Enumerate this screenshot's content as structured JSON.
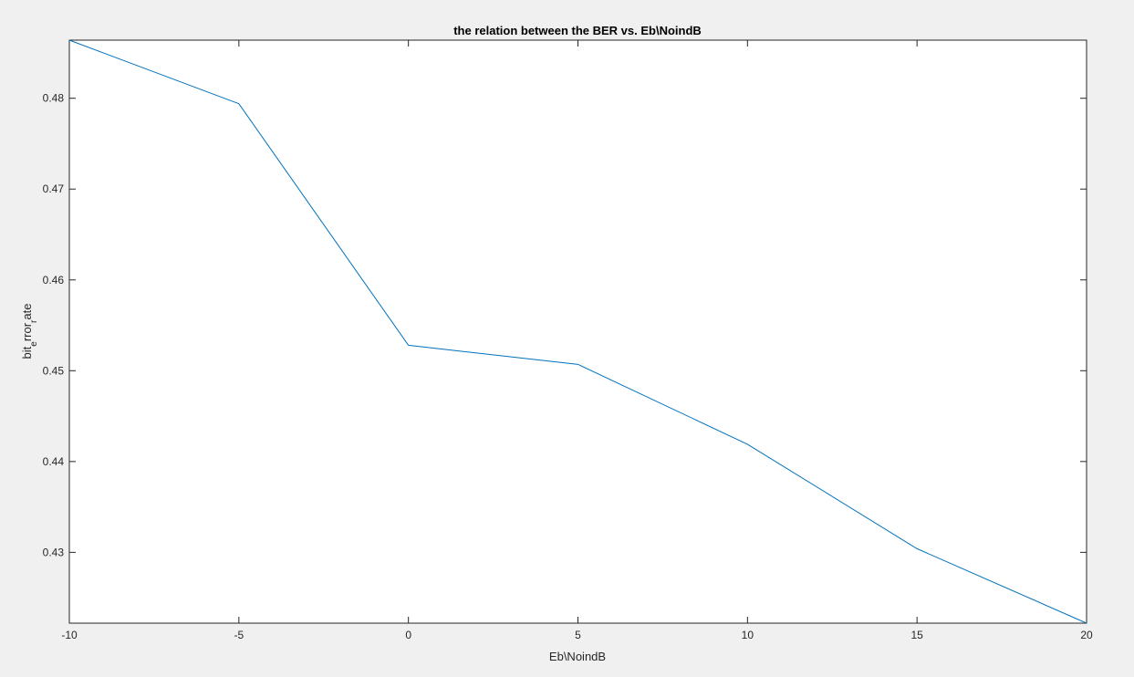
{
  "chart_data": {
    "type": "line",
    "title": "the relation between the BER vs. Eb\\NoindB",
    "xlabel": "Eb\\NoindB",
    "ylabel": {
      "parts": [
        {
          "text": "bit",
          "sub": false
        },
        {
          "text": "e",
          "sub": true
        },
        {
          "text": "rror",
          "sub": false
        },
        {
          "text": "r",
          "sub": true
        },
        {
          "text": "ate",
          "sub": false
        }
      ]
    },
    "xlim": [
      -10,
      20
    ],
    "ylim": [
      0.4222,
      0.4864
    ],
    "xticks": [
      -10,
      -5,
      0,
      5,
      10,
      15,
      20
    ],
    "xtick_labels": [
      "-10",
      "-5",
      "0",
      "5",
      "10",
      "15",
      "20"
    ],
    "yticks": [
      0.43,
      0.44,
      0.45,
      0.46,
      0.47,
      0.48
    ],
    "ytick_labels": [
      "0.43",
      "0.44",
      "0.45",
      "0.46",
      "0.47",
      "0.48"
    ],
    "grid": false,
    "line_color": "#0072bd",
    "series": [
      {
        "x": [
          -10,
          -5,
          0,
          5,
          10,
          15,
          20
        ],
        "values": [
          0.4864,
          0.4794,
          0.4528,
          0.4507,
          0.4419,
          0.4304,
          0.4222
        ]
      }
    ]
  }
}
